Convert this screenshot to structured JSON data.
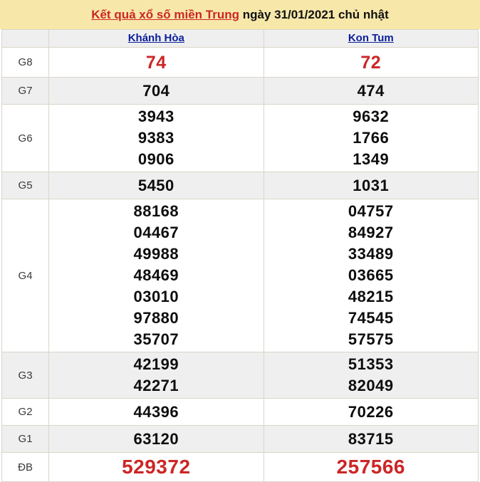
{
  "title": {
    "link": "Kết quả xổ số miền Trung",
    "date_text": " ngày 31/01/2021 chủ nhật"
  },
  "header": {
    "corner": "",
    "columns": [
      {
        "label": "Khánh Hòa"
      },
      {
        "label": "Kon Tum"
      }
    ]
  },
  "prizes": [
    {
      "label": "G8",
      "values": [
        [
          "74"
        ],
        [
          "72"
        ]
      ]
    },
    {
      "label": "G7",
      "values": [
        [
          "704"
        ],
        [
          "474"
        ]
      ]
    },
    {
      "label": "G6",
      "values": [
        [
          "3943",
          "9383",
          "0906"
        ],
        [
          "9632",
          "1766",
          "1349"
        ]
      ]
    },
    {
      "label": "G5",
      "values": [
        [
          "5450"
        ],
        [
          "1031"
        ]
      ]
    },
    {
      "label": "G4",
      "values": [
        [
          "88168",
          "04467",
          "49988",
          "48469",
          "03010",
          "97880",
          "35707"
        ],
        [
          "04757",
          "84927",
          "33489",
          "03665",
          "48215",
          "74545",
          "57575"
        ]
      ]
    },
    {
      "label": "G3",
      "values": [
        [
          "42199",
          "42271"
        ],
        [
          "51353",
          "82049"
        ]
      ]
    },
    {
      "label": "G2",
      "values": [
        [
          "44396"
        ],
        [
          "70226"
        ]
      ]
    },
    {
      "label": "G1",
      "values": [
        [
          "63120"
        ],
        [
          "83715"
        ]
      ]
    },
    {
      "label": "ĐB",
      "values": [
        [
          "529372"
        ],
        [
          "257566"
        ]
      ]
    }
  ],
  "colors": {
    "title_bg": "#f7e8aa",
    "alt_row_bg": "#efefef",
    "border": "#d9d5c9",
    "red": "#cc2626",
    "link_blue": "#0a1e9b"
  }
}
